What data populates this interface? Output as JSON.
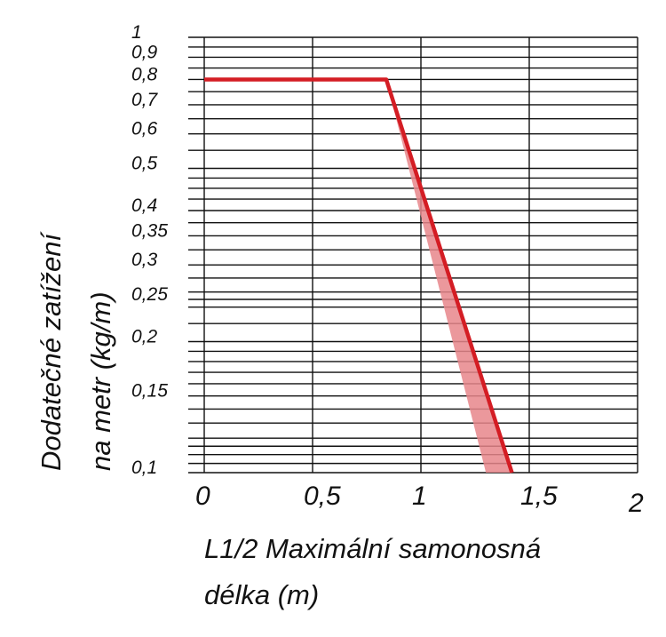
{
  "chart_data": {
    "type": "line",
    "x_scale": "linear",
    "y_scale": "log",
    "xlim": [
      0,
      2
    ],
    "ylim": [
      0.1,
      1
    ],
    "x_tick_labels": [
      "0",
      "0,5",
      "1",
      "1,5",
      "2"
    ],
    "x_tick_values": [
      0,
      0.5,
      1,
      1.5,
      2
    ],
    "y_tick_labels": [
      "1",
      "0,9",
      "0,8",
      "0,7",
      "0,6",
      "0,5",
      "0,4",
      "0,35",
      "0,3",
      "0,25",
      "0,2",
      "0,15",
      "0,1"
    ],
    "y_tick_values": [
      1,
      0.9,
      0.8,
      0.7,
      0.6,
      0.5,
      0.4,
      0.35,
      0.3,
      0.25,
      0.2,
      0.15,
      0.1
    ],
    "grid_y_values": [
      1,
      0.95,
      0.9,
      0.85,
      0.8,
      0.75,
      0.7,
      0.65,
      0.6,
      0.55,
      0.5,
      0.475,
      0.45,
      0.425,
      0.4,
      0.375,
      0.35,
      0.325,
      0.3,
      0.28,
      0.26,
      0.25,
      0.24,
      0.22,
      0.2,
      0.19,
      0.18,
      0.17,
      0.16,
      0.15,
      0.14,
      0.13,
      0.12,
      0.115,
      0.11,
      0.105,
      0.1
    ],
    "grid": true,
    "xlabel_lines": [
      "L1/2 Maximální samonosná",
      "délka (m)"
    ],
    "ylabel_lines": [
      "Dodatečné zatížení",
      "na metr (kg/m)"
    ],
    "series": [
      {
        "x": [
          0,
          0.84,
          1.42
        ],
        "y": [
          0.8,
          0.8,
          0.1
        ],
        "color": "#d41d24"
      }
    ],
    "band": {
      "upper": {
        "x": [
          0.84,
          1.42
        ],
        "y": [
          0.8,
          0.1
        ]
      },
      "lower": {
        "x": [
          0.84,
          1.3
        ],
        "y": [
          0.8,
          0.1
        ]
      },
      "color": "#e8868b"
    }
  }
}
